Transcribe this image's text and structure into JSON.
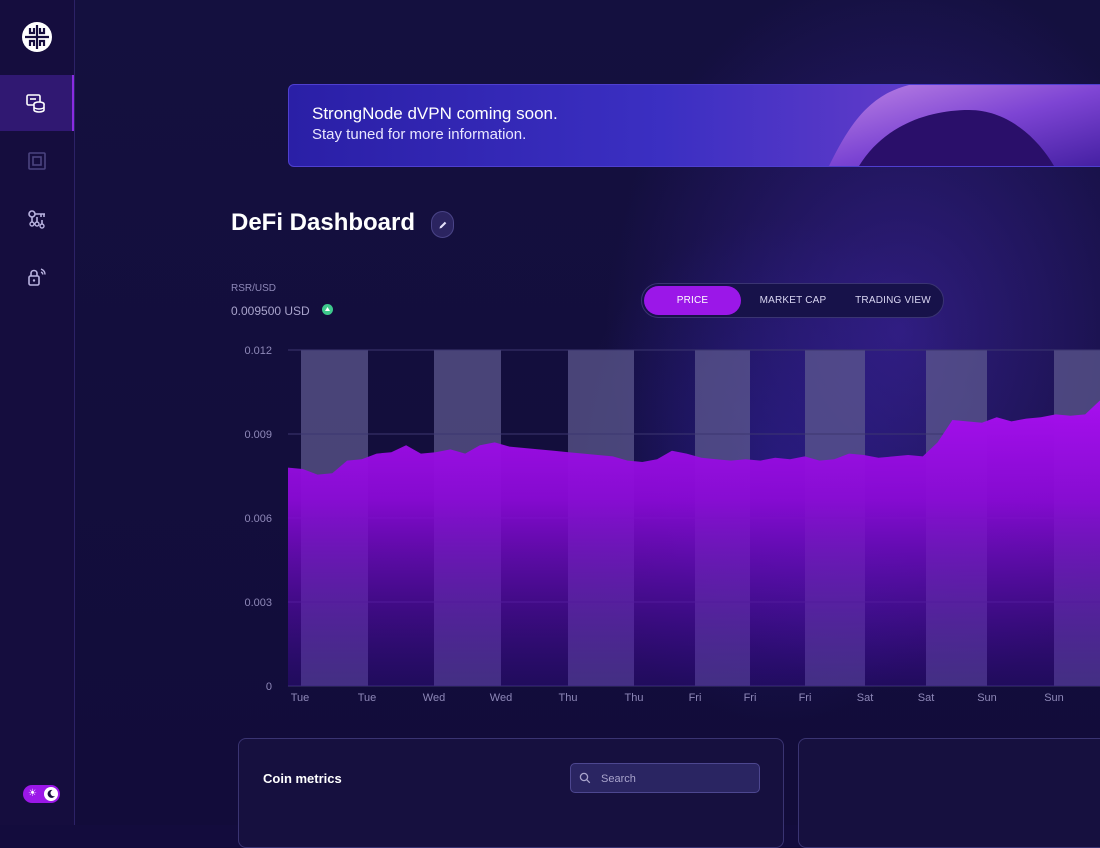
{
  "banner": {
    "line1": "StrongNode dVPN coming soon.",
    "line2": "Stay tuned for more information."
  },
  "page": {
    "title": "DeFi Dashboard"
  },
  "price": {
    "pair": "RSR/USD",
    "value": "0.009500 USD",
    "trend": "up"
  },
  "tabs": [
    {
      "label": "PRICE",
      "active": true
    },
    {
      "label": "MARKET CAP",
      "active": false
    },
    {
      "label": "TRADING VIEW",
      "active": false
    }
  ],
  "colors": {
    "accent": "#9b17e8",
    "area_top": "#a70fee",
    "up_indicator": "#3ec98c"
  },
  "chart_data": {
    "type": "area",
    "x_tick_labels": [
      "Tue",
      "Tue",
      "Wed",
      "Wed",
      "Thu",
      "Thu",
      "Fri",
      "Fri",
      "Fri",
      "Sat",
      "Sat",
      "Sun",
      "Sun"
    ],
    "y_tick_labels": [
      "0",
      "0.003",
      "0.006",
      "0.009",
      "0.012"
    ],
    "ylim": [
      0,
      0.012
    ],
    "grid": true,
    "series": [
      {
        "values": [
          0.0078,
          0.00775,
          0.00755,
          0.0076,
          0.00805,
          0.0081,
          0.0083,
          0.00835,
          0.0086,
          0.0083,
          0.00835,
          0.00845,
          0.0083,
          0.0086,
          0.0087,
          0.00855,
          0.0085,
          0.00845,
          0.0084,
          0.00835,
          0.0083,
          0.00825,
          0.0082,
          0.00805,
          0.008,
          0.0081,
          0.0084,
          0.0083,
          0.00815,
          0.0081,
          0.00805,
          0.0081,
          0.00805,
          0.00815,
          0.0081,
          0.0082,
          0.00805,
          0.0081,
          0.0083,
          0.00825,
          0.00815,
          0.0082,
          0.00825,
          0.0082,
          0.0087,
          0.0095,
          0.00945,
          0.0094,
          0.0096,
          0.00945,
          0.00955,
          0.0096,
          0.0097,
          0.00965,
          0.0097,
          0.0102
        ]
      }
    ]
  },
  "coin_metrics": {
    "title": "Coin metrics",
    "search_placeholder": "Search"
  }
}
